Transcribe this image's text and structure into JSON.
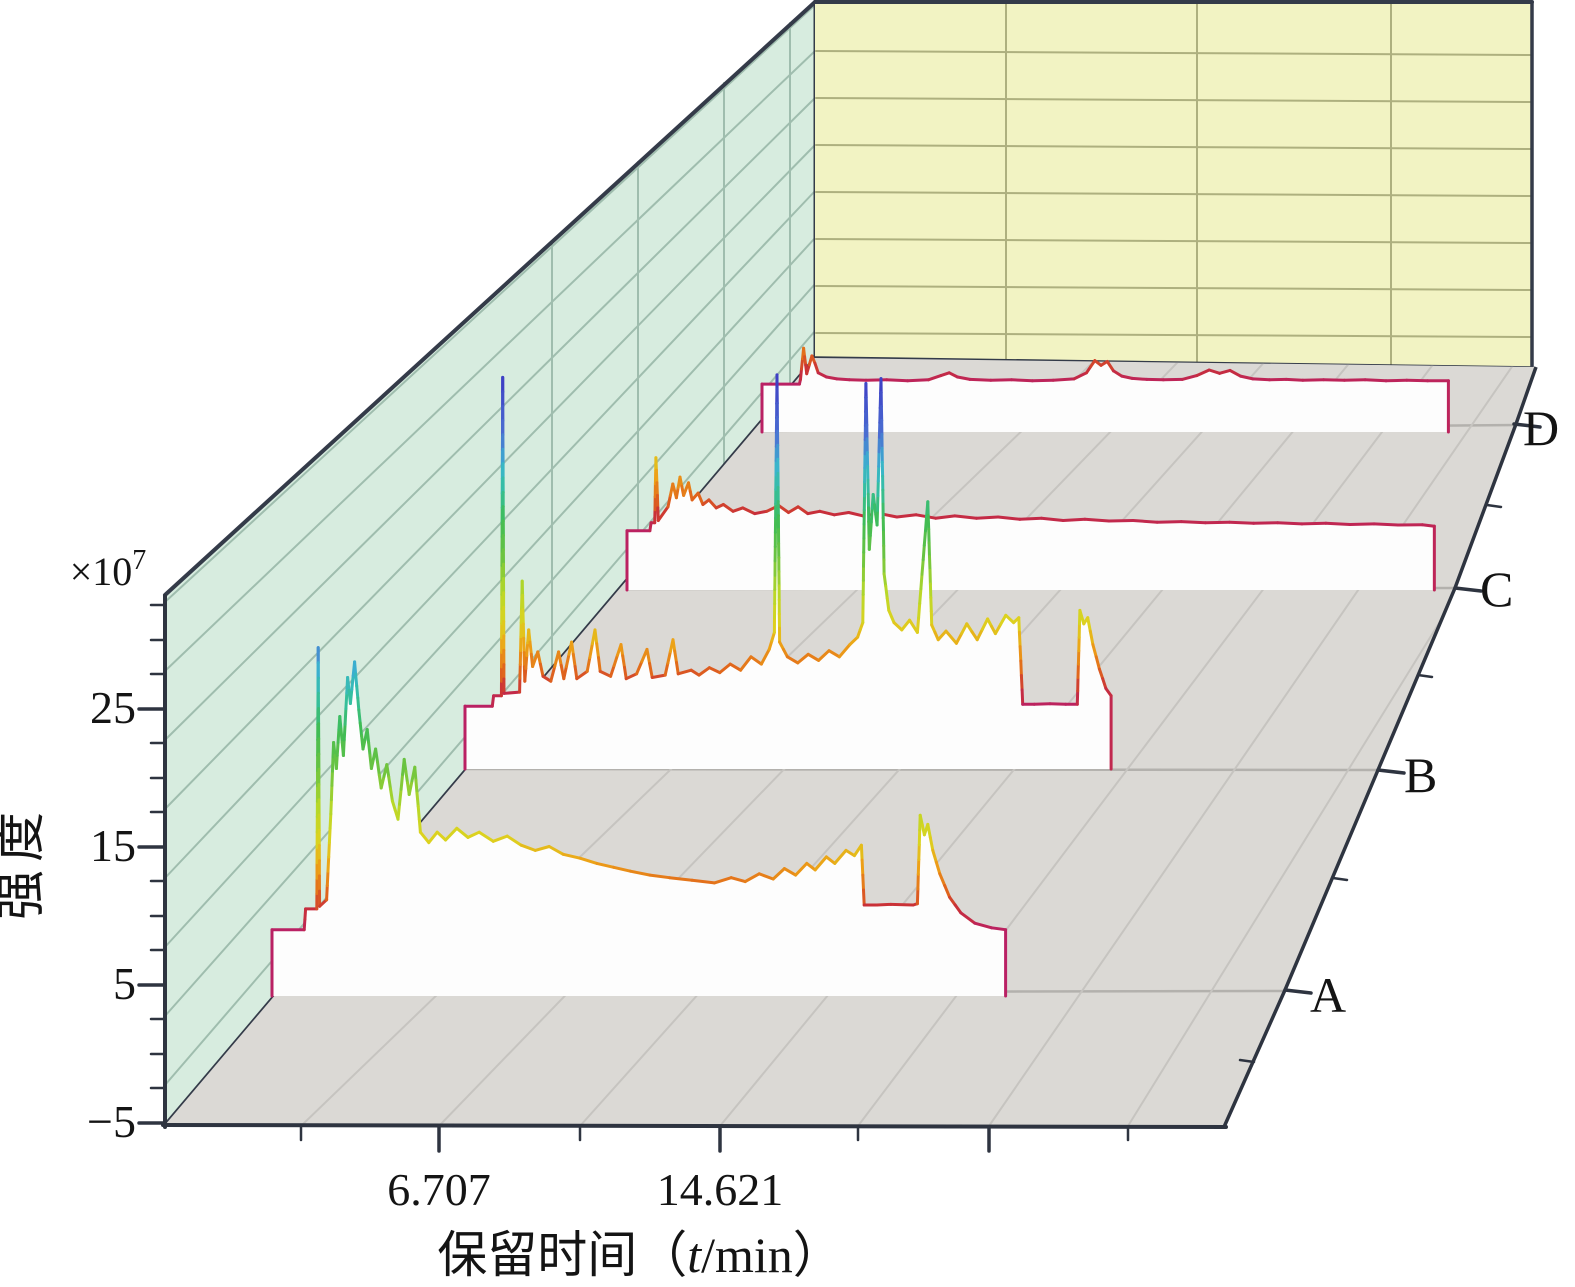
{
  "chart_data": {
    "type": "line",
    "subtype": "3d-waterfall-chromatogram",
    "title": "",
    "xlabel_full": "保留时间（t/min）",
    "xlabel_parts": {
      "prefix": "保留时间（",
      "var": "t",
      "suffix": "/min）"
    },
    "ylabel": "强度",
    "y_scale_prefix": "×10",
    "y_scale_exponent": "7",
    "x_tick_labels": [
      "6.707",
      "14.621"
    ],
    "y_tick_labels": [
      "−5",
      "5",
      "15",
      "25"
    ],
    "series_axis_labels": [
      "A",
      "B",
      "C",
      "D"
    ],
    "xlim_minutes": [
      0,
      33.5
    ],
    "ylim": [
      -5,
      33
    ],
    "grid": true,
    "legend": "none",
    "colormap_by_intensity": [
      [
        0,
        "#b92066"
      ],
      [
        2,
        "#c93038"
      ],
      [
        3.5,
        "#e0641c"
      ],
      [
        5.5,
        "#eda117"
      ],
      [
        7.5,
        "#ddd21f"
      ],
      [
        10,
        "#b8d828"
      ],
      [
        13,
        "#6cc440"
      ],
      [
        16,
        "#3fbc55"
      ],
      [
        18.5,
        "#35bfa0"
      ],
      [
        20.5,
        "#3ab4cf"
      ],
      [
        23,
        "#4b6fd2"
      ],
      [
        27.5,
        "#3d3dc4"
      ]
    ],
    "series": [
      {
        "name": "A",
        "points": [
          [
            0,
            0.1
          ],
          [
            1.15,
            0.1
          ],
          [
            1.2,
            1.7
          ],
          [
            1.6,
            1.7
          ],
          [
            1.65,
            21.8
          ],
          [
            1.7,
            1.9
          ],
          [
            1.95,
            2.4
          ],
          [
            2.1,
            9
          ],
          [
            2.2,
            14.5
          ],
          [
            2.3,
            12.5
          ],
          [
            2.42,
            16.5
          ],
          [
            2.55,
            13.5
          ],
          [
            2.7,
            19.5
          ],
          [
            2.8,
            17.5
          ],
          [
            2.95,
            20.7
          ],
          [
            3.1,
            17
          ],
          [
            3.25,
            14
          ],
          [
            3.4,
            15.5
          ],
          [
            3.55,
            12.5
          ],
          [
            3.7,
            14
          ],
          [
            3.9,
            11
          ],
          [
            4.1,
            12.8
          ],
          [
            4.3,
            10
          ],
          [
            4.5,
            8.6
          ],
          [
            4.72,
            13.2
          ],
          [
            4.9,
            10.5
          ],
          [
            5.1,
            12.6
          ],
          [
            5.3,
            7.6
          ],
          [
            5.6,
            6.8
          ],
          [
            5.9,
            7.6
          ],
          [
            6.2,
            7.0
          ],
          [
            6.6,
            7.9
          ],
          [
            7.0,
            7.2
          ],
          [
            7.4,
            7.6
          ],
          [
            7.9,
            6.9
          ],
          [
            8.4,
            7.3
          ],
          [
            8.9,
            6.6
          ],
          [
            9.4,
            6.2
          ],
          [
            9.9,
            6.5
          ],
          [
            10.4,
            5.9
          ],
          [
            11.0,
            5.6
          ],
          [
            11.6,
            5.2
          ],
          [
            12.2,
            4.9
          ],
          [
            12.8,
            4.6
          ],
          [
            13.5,
            4.3
          ],
          [
            14.2,
            4.1
          ],
          [
            15,
            3.9
          ],
          [
            15.8,
            3.7
          ],
          [
            16.4,
            4.1
          ],
          [
            16.9,
            3.8
          ],
          [
            17.4,
            4.4
          ],
          [
            17.9,
            4.0
          ],
          [
            18.3,
            4.8
          ],
          [
            18.7,
            4.3
          ],
          [
            19.1,
            5.2
          ],
          [
            19.4,
            4.7
          ],
          [
            19.8,
            5.7
          ],
          [
            20.1,
            5.2
          ],
          [
            20.5,
            6.2
          ],
          [
            20.8,
            5.8
          ],
          [
            21.05,
            6.6
          ],
          [
            21.15,
            2.0
          ],
          [
            21.6,
            2.0
          ],
          [
            22.1,
            2.05
          ],
          [
            22.9,
            2.0
          ],
          [
            23.05,
            2.1
          ],
          [
            23.15,
            8.9
          ],
          [
            23.3,
            7.4
          ],
          [
            23.42,
            8.2
          ],
          [
            23.6,
            6.2
          ],
          [
            23.85,
            4.4
          ],
          [
            24.2,
            2.6
          ],
          [
            24.6,
            1.4
          ],
          [
            25.1,
            0.6
          ],
          [
            25.7,
            0.25
          ],
          [
            26.2,
            0.1
          ]
        ]
      },
      {
        "name": "B",
        "points": [
          [
            0,
            0.15
          ],
          [
            1.05,
            0.15
          ],
          [
            1.1,
            1.0
          ],
          [
            1.4,
            1.0
          ],
          [
            1.45,
            27.1
          ],
          [
            1.5,
            1.2
          ],
          [
            2.1,
            1.3
          ],
          [
            2.2,
            10.4
          ],
          [
            2.3,
            2.2
          ],
          [
            2.45,
            6.4
          ],
          [
            2.6,
            3.4
          ],
          [
            2.8,
            4.6
          ],
          [
            3.0,
            2.6
          ],
          [
            3.3,
            2.2
          ],
          [
            3.6,
            4.6
          ],
          [
            3.8,
            2.4
          ],
          [
            4.1,
            5.4
          ],
          [
            4.3,
            2.4
          ],
          [
            4.7,
            3.0
          ],
          [
            5.0,
            6.4
          ],
          [
            5.2,
            3.0
          ],
          [
            5.6,
            2.6
          ],
          [
            6.0,
            5.2
          ],
          [
            6.2,
            2.4
          ],
          [
            6.6,
            2.8
          ],
          [
            7.0,
            4.8
          ],
          [
            7.2,
            2.5
          ],
          [
            7.7,
            2.7
          ],
          [
            8.0,
            5.6
          ],
          [
            8.2,
            2.8
          ],
          [
            8.7,
            3.1
          ],
          [
            9.0,
            2.7
          ],
          [
            9.4,
            3.3
          ],
          [
            9.8,
            2.9
          ],
          [
            10.2,
            3.6
          ],
          [
            10.6,
            3.1
          ],
          [
            11.0,
            4.2
          ],
          [
            11.4,
            3.6
          ],
          [
            11.7,
            4.8
          ],
          [
            11.9,
            6.2
          ],
          [
            12.0,
            27.3
          ],
          [
            12.1,
            5.4
          ],
          [
            12.4,
            4.2
          ],
          [
            12.8,
            3.7
          ],
          [
            13.2,
            4.4
          ],
          [
            13.6,
            3.9
          ],
          [
            14.0,
            4.7
          ],
          [
            14.4,
            4.2
          ],
          [
            14.8,
            5.2
          ],
          [
            15.1,
            5.8
          ],
          [
            15.3,
            7
          ],
          [
            15.42,
            26.6
          ],
          [
            15.55,
            13
          ],
          [
            15.7,
            17.5
          ],
          [
            15.85,
            15
          ],
          [
            16.0,
            27.0
          ],
          [
            16.12,
            11
          ],
          [
            16.3,
            8
          ],
          [
            16.5,
            7
          ],
          [
            16.8,
            6.4
          ],
          [
            17.1,
            7.2
          ],
          [
            17.4,
            6.2
          ],
          [
            17.8,
            16.9
          ],
          [
            17.95,
            6.8
          ],
          [
            18.2,
            5.6
          ],
          [
            18.5,
            6.3
          ],
          [
            18.9,
            5.3
          ],
          [
            19.3,
            6.9
          ],
          [
            19.7,
            5.6
          ],
          [
            20.1,
            7.3
          ],
          [
            20.4,
            6.1
          ],
          [
            20.8,
            7.6
          ],
          [
            21.1,
            7.0
          ],
          [
            21.3,
            7.4
          ],
          [
            21.45,
            0.3
          ],
          [
            21.9,
            0.3
          ],
          [
            22.5,
            0.35
          ],
          [
            23.1,
            0.3
          ],
          [
            23.55,
            0.3
          ],
          [
            23.65,
            8.0
          ],
          [
            23.8,
            6.9
          ],
          [
            23.95,
            7.4
          ],
          [
            24.15,
            5.2
          ],
          [
            24.4,
            3.2
          ],
          [
            24.65,
            1.6
          ],
          [
            24.85,
            1.0
          ]
        ]
      },
      {
        "name": "C",
        "points": [
          [
            0,
            0.2
          ],
          [
            0.95,
            0.2
          ],
          [
            1.0,
            0.9
          ],
          [
            1.15,
            0.9
          ],
          [
            1.2,
            6.6
          ],
          [
            1.3,
            1.1
          ],
          [
            1.7,
            2.3
          ],
          [
            1.9,
            4.3
          ],
          [
            2.05,
            3.1
          ],
          [
            2.2,
            4.9
          ],
          [
            2.35,
            3.3
          ],
          [
            2.55,
            4.4
          ],
          [
            2.7,
            2.9
          ],
          [
            2.95,
            3.5
          ],
          [
            3.15,
            2.5
          ],
          [
            3.4,
            2.9
          ],
          [
            3.7,
            2.2
          ],
          [
            4.0,
            2.5
          ],
          [
            4.4,
            1.9
          ],
          [
            4.8,
            2.2
          ],
          [
            5.3,
            1.7
          ],
          [
            5.8,
            1.9
          ],
          [
            6.3,
            2.4
          ],
          [
            6.7,
            1.8
          ],
          [
            7.1,
            2.3
          ],
          [
            7.5,
            1.7
          ],
          [
            8.0,
            1.9
          ],
          [
            8.6,
            1.6
          ],
          [
            9.2,
            1.8
          ],
          [
            9.8,
            1.5
          ],
          [
            10.5,
            1.7
          ],
          [
            11.2,
            1.4
          ],
          [
            12.0,
            1.6
          ],
          [
            12.8,
            1.3
          ],
          [
            13.6,
            1.5
          ],
          [
            14.5,
            1.3
          ],
          [
            15.4,
            1.4
          ],
          [
            16.3,
            1.2
          ],
          [
            17.2,
            1.3
          ],
          [
            18.1,
            1.1
          ],
          [
            19.0,
            1.2
          ],
          [
            20,
            1.05
          ],
          [
            21,
            1.1
          ],
          [
            22,
            0.95
          ],
          [
            23,
            1.0
          ],
          [
            24,
            0.9
          ],
          [
            25,
            0.95
          ],
          [
            26,
            0.85
          ],
          [
            27,
            0.9
          ],
          [
            28,
            0.8
          ],
          [
            29,
            0.85
          ],
          [
            30,
            0.75
          ],
          [
            31,
            0.8
          ],
          [
            32,
            0.7
          ],
          [
            33,
            0.72
          ],
          [
            33.5,
            0.6
          ]
        ]
      },
      {
        "name": "D",
        "points": [
          [
            0,
            0.1
          ],
          [
            1.8,
            0.1
          ],
          [
            1.85,
            0.6
          ],
          [
            2.0,
            3.9
          ],
          [
            2.15,
            1.2
          ],
          [
            2.4,
            3.1
          ],
          [
            2.55,
            2.3
          ],
          [
            2.7,
            1.3
          ],
          [
            3.1,
            0.85
          ],
          [
            3.6,
            0.65
          ],
          [
            4.2,
            0.55
          ],
          [
            5,
            0.5
          ],
          [
            6,
            0.55
          ],
          [
            7,
            0.45
          ],
          [
            8,
            0.55
          ],
          [
            8.6,
            1.0
          ],
          [
            9.0,
            1.3
          ],
          [
            9.4,
            0.85
          ],
          [
            10,
            0.6
          ],
          [
            11,
            0.5
          ],
          [
            12,
            0.55
          ],
          [
            13,
            0.45
          ],
          [
            14,
            0.5
          ],
          [
            15,
            0.65
          ],
          [
            15.6,
            1.3
          ],
          [
            16.0,
            2.6
          ],
          [
            16.3,
            2.1
          ],
          [
            16.6,
            2.5
          ],
          [
            16.9,
            1.5
          ],
          [
            17.3,
            0.95
          ],
          [
            17.8,
            0.7
          ],
          [
            18.5,
            0.6
          ],
          [
            19.3,
            0.55
          ],
          [
            20.2,
            0.6
          ],
          [
            20.9,
            1.0
          ],
          [
            21.5,
            1.6
          ],
          [
            22.0,
            1.25
          ],
          [
            22.5,
            1.55
          ],
          [
            23.0,
            0.95
          ],
          [
            23.6,
            0.65
          ],
          [
            24.4,
            0.55
          ],
          [
            25.2,
            0.6
          ],
          [
            26,
            0.5
          ],
          [
            27,
            0.55
          ],
          [
            28,
            0.5
          ],
          [
            29,
            0.55
          ],
          [
            30,
            0.45
          ],
          [
            31,
            0.5
          ],
          [
            32,
            0.45
          ],
          [
            33,
            0.45
          ]
        ]
      }
    ]
  },
  "colors": {
    "wall_left_fill": "#d7ecdf",
    "wall_left_grid": "#9fbdae",
    "wall_back_fill": "#f2f3c3",
    "wall_back_grid": "#aeb07f",
    "floor_fill": "#dbd9d5",
    "floor_grid_depth": "#b3b1ad",
    "floor_grid_time": "#c6c4c0",
    "outline": "#343b49",
    "axis": "#2e3440",
    "ribbon_fill": "#fdfdfd",
    "text": "#141414",
    "background": "#ffffff"
  }
}
